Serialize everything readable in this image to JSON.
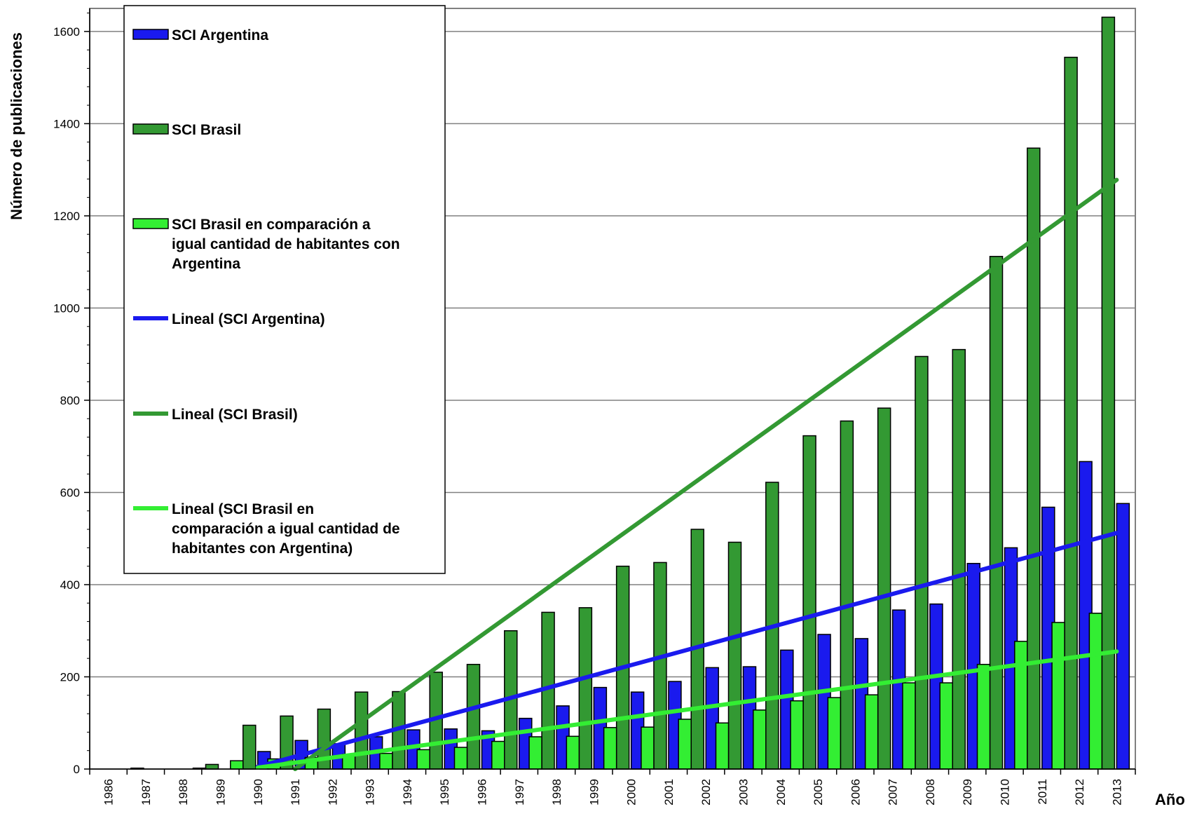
{
  "chart_data": {
    "type": "bar",
    "ylabel": "Número de publicaciones",
    "xlabel": "Año",
    "ylim": [
      0,
      1650
    ],
    "yticks": [
      0,
      200,
      400,
      600,
      800,
      1000,
      1200,
      1400,
      1600
    ],
    "grid": true,
    "legend_position": "top-left",
    "categories": [
      "1986",
      "1987",
      "1988",
      "1989",
      "1990",
      "1991",
      "1992",
      "1993",
      "1994",
      "1995",
      "1996",
      "1997",
      "1998",
      "1999",
      "2000",
      "2001",
      "2002",
      "2003",
      "2004",
      "2005",
      "2006",
      "2007",
      "2008",
      "2009",
      "2010",
      "2011",
      "2012",
      "2013"
    ],
    "series": [
      {
        "name": "SCI Brasil",
        "color": "#339933",
        "values": [
          0,
          2,
          0,
          10,
          95,
          115,
          130,
          167,
          168,
          210,
          227,
          300,
          340,
          350,
          440,
          448,
          520,
          492,
          622,
          723,
          755,
          783,
          895,
          910,
          1112,
          1347,
          1544,
          1631
        ]
      },
      {
        "name": "SCI Argentina",
        "color": "#1a1aee",
        "values": [
          0,
          0,
          0,
          0,
          38,
          62,
          55,
          70,
          85,
          87,
          83,
          110,
          137,
          177,
          167,
          190,
          220,
          222,
          258,
          292,
          283,
          345,
          358,
          446,
          480,
          568,
          667,
          576
        ]
      },
      {
        "name": "SCI Brasil en comparación a igual cantidad de habitantes con Argentina",
        "color": "#33ee33",
        "values": [
          0,
          0,
          0,
          2,
          18,
          22,
          25,
          32,
          34,
          42,
          47,
          60,
          70,
          71,
          90,
          91,
          108,
          100,
          128,
          148,
          155,
          161,
          187,
          187,
          227,
          277,
          318,
          338
        ]
      }
    ],
    "trendlines": [
      {
        "name": "Lineal (SCI Argentina)",
        "color": "#1a1aee",
        "from": [
          "1990",
          5
        ],
        "to": [
          "2013",
          512
        ]
      },
      {
        "name": "Lineal (SCI Brasil)",
        "color": "#339933",
        "from": [
          "1991",
          0
        ],
        "to": [
          "2013",
          1278
        ]
      },
      {
        "name": "Lineal (SCI Brasil en comparación a igual cantidad de habitantes con Argentina)",
        "color": "#33ee33",
        "from": [
          "1990",
          3
        ],
        "to": [
          "2013",
          255
        ]
      }
    ],
    "legend": [
      {
        "kind": "box",
        "color": "#1a1aee",
        "lines": [
          "SCI Argentina"
        ]
      },
      {
        "kind": "box",
        "color": "#339933",
        "lines": [
          "SCI Brasil"
        ]
      },
      {
        "kind": "box",
        "color": "#33ee33",
        "lines": [
          "SCI Brasil en comparación a",
          "igual cantidad de habitantes con",
          "Argentina"
        ]
      },
      {
        "kind": "line",
        "color": "#1a1aee",
        "lines": [
          "Lineal (SCI Argentina)"
        ]
      },
      {
        "kind": "line",
        "color": "#339933",
        "lines": [
          "Lineal (SCI Brasil)"
        ]
      },
      {
        "kind": "line",
        "color": "#33ee33",
        "lines": [
          "Lineal (SCI Brasil en",
          "comparación a igual cantidad de",
          "habitantes con Argentina)"
        ]
      }
    ]
  }
}
